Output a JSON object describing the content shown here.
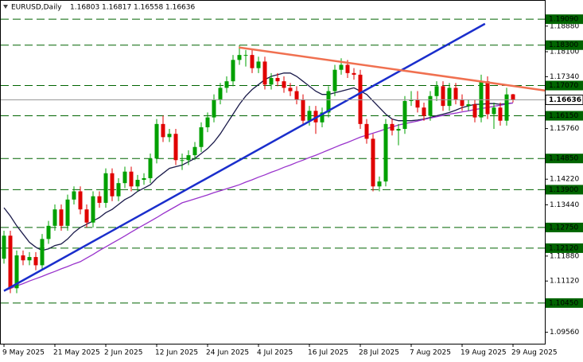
{
  "chart_data": {
    "type": "candlestick",
    "symbol": "EURUSD,Daily",
    "categories": [
      "9 May 2025",
      null,
      null,
      null,
      null,
      null,
      null,
      null,
      "21 May 2025",
      null,
      null,
      null,
      null,
      null,
      null,
      null,
      "2 Jun 2025",
      null,
      null,
      null,
      null,
      null,
      null,
      null,
      "12 Jun 2025",
      null,
      null,
      null,
      null,
      null,
      null,
      null,
      "24 Jun 2025",
      null,
      null,
      null,
      null,
      null,
      null,
      null,
      "4 Jul 2025",
      null,
      null,
      null,
      null,
      null,
      null,
      null,
      "16 Jul 2025",
      null,
      null,
      null,
      null,
      null,
      null,
      null,
      "28 Jul 2025",
      null,
      null,
      null,
      null,
      null,
      null,
      null,
      "7 Aug 2025",
      null,
      null,
      null,
      null,
      null,
      null,
      null,
      "19 Aug 2025",
      null,
      null,
      null,
      null,
      null,
      null,
      null,
      "29 Aug 2025"
    ],
    "ohlc": [
      [
        1.118,
        1.1265,
        1.1165,
        1.125
      ],
      [
        1.125,
        1.1265,
        1.1075,
        1.109
      ],
      [
        1.109,
        1.1205,
        1.1075,
        1.119
      ],
      [
        1.119,
        1.1205,
        1.116,
        1.1175
      ],
      [
        1.1175,
        1.12,
        1.116,
        1.1185
      ],
      [
        1.1185,
        1.12,
        1.1145,
        1.116
      ],
      [
        1.116,
        1.1255,
        1.1145,
        1.124
      ],
      [
        1.124,
        1.1295,
        1.1225,
        1.128
      ],
      [
        1.128,
        1.1345,
        1.1265,
        1.133
      ],
      [
        1.133,
        1.1345,
        1.1265,
        1.128
      ],
      [
        1.128,
        1.1375,
        1.1265,
        1.136
      ],
      [
        1.136,
        1.14,
        1.1345,
        1.1385
      ],
      [
        1.1385,
        1.14,
        1.1315,
        1.133
      ],
      [
        1.133,
        1.1345,
        1.1275,
        1.129
      ],
      [
        1.129,
        1.1385,
        1.1275,
        1.137
      ],
      [
        1.137,
        1.1385,
        1.1335,
        1.135
      ],
      [
        1.135,
        1.1455,
        1.1335,
        1.144
      ],
      [
        1.144,
        1.1455,
        1.1355,
        1.137
      ],
      [
        1.137,
        1.1425,
        1.1355,
        1.141
      ],
      [
        1.141,
        1.146,
        1.1395,
        1.1445
      ],
      [
        1.1445,
        1.146,
        1.1385,
        1.14
      ],
      [
        1.14,
        1.1435,
        1.1385,
        1.142
      ],
      [
        1.142,
        1.144,
        1.1405,
        1.1425
      ],
      [
        1.1425,
        1.15,
        1.141,
        1.1485
      ],
      [
        1.1485,
        1.1605,
        1.147,
        1.159
      ],
      [
        1.159,
        1.1615,
        1.1535,
        1.155
      ],
      [
        1.155,
        1.1575,
        1.1535,
        1.156
      ],
      [
        1.156,
        1.1575,
        1.1465,
        1.148
      ],
      [
        1.148,
        1.15,
        1.145,
        1.148
      ],
      [
        1.148,
        1.151,
        1.1465,
        1.1495
      ],
      [
        1.1495,
        1.1535,
        1.148,
        1.152
      ],
      [
        1.152,
        1.1595,
        1.1505,
        1.158
      ],
      [
        1.158,
        1.1625,
        1.1565,
        1.161
      ],
      [
        1.161,
        1.168,
        1.1595,
        1.1665
      ],
      [
        1.1665,
        1.1715,
        1.165,
        1.17
      ],
      [
        1.17,
        1.1735,
        1.1685,
        1.172
      ],
      [
        1.172,
        1.18,
        1.1705,
        1.1785
      ],
      [
        1.1785,
        1.183,
        1.177,
        1.18
      ],
      [
        1.18,
        1.1815,
        1.1765,
        1.18
      ],
      [
        1.18,
        1.1815,
        1.1745,
        1.176
      ],
      [
        1.176,
        1.1795,
        1.1745,
        1.178
      ],
      [
        1.178,
        1.1795,
        1.1695,
        1.171
      ],
      [
        1.171,
        1.1745,
        1.1695,
        1.173
      ],
      [
        1.173,
        1.1745,
        1.1705,
        1.172
      ],
      [
        1.172,
        1.1735,
        1.1685,
        1.17
      ],
      [
        1.17,
        1.1715,
        1.1675,
        1.169
      ],
      [
        1.169,
        1.1705,
        1.165,
        1.1665
      ],
      [
        1.1665,
        1.168,
        1.1585,
        1.16
      ],
      [
        1.16,
        1.1645,
        1.1585,
        1.163
      ],
      [
        1.163,
        1.1645,
        1.156,
        1.1595
      ],
      [
        1.1595,
        1.164,
        1.158,
        1.1625
      ],
      [
        1.1625,
        1.1705,
        1.161,
        1.169
      ],
      [
        1.169,
        1.177,
        1.1675,
        1.1755
      ],
      [
        1.1755,
        1.179,
        1.174,
        1.177
      ],
      [
        1.177,
        1.1785,
        1.173,
        1.1745
      ],
      [
        1.1745,
        1.176,
        1.1725,
        1.174
      ],
      [
        1.174,
        1.1755,
        1.1575,
        1.159
      ],
      [
        1.159,
        1.1605,
        1.153,
        1.1545
      ],
      [
        1.1545,
        1.156,
        1.1385,
        1.14
      ],
      [
        1.14,
        1.143,
        1.1385,
        1.1415
      ],
      [
        1.1415,
        1.1605,
        1.14,
        1.159
      ],
      [
        1.159,
        1.1605,
        1.1555,
        1.157
      ],
      [
        1.157,
        1.159,
        1.1525,
        1.1575
      ],
      [
        1.1575,
        1.1675,
        1.156,
        1.166
      ],
      [
        1.166,
        1.169,
        1.1645,
        1.1665
      ],
      [
        1.1665,
        1.169,
        1.1625,
        1.164
      ],
      [
        1.164,
        1.1655,
        1.16,
        1.1615
      ],
      [
        1.1615,
        1.169,
        1.16,
        1.1675
      ],
      [
        1.1675,
        1.172,
        1.166,
        1.1705
      ],
      [
        1.1705,
        1.172,
        1.163,
        1.1645
      ],
      [
        1.1645,
        1.1715,
        1.163,
        1.17
      ],
      [
        1.17,
        1.1715,
        1.165,
        1.1665
      ],
      [
        1.1665,
        1.168,
        1.163,
        1.1645
      ],
      [
        1.1645,
        1.1665,
        1.163,
        1.165
      ],
      [
        1.165,
        1.1665,
        1.1595,
        1.161
      ],
      [
        1.161,
        1.174,
        1.1595,
        1.172
      ],
      [
        1.172,
        1.1735,
        1.1605,
        1.162
      ],
      [
        1.162,
        1.1655,
        1.1575,
        1.164
      ],
      [
        1.164,
        1.1655,
        1.1585,
        1.16
      ],
      [
        1.16,
        1.17,
        1.1585,
        1.168
      ],
      [
        1.16803,
        1.16817,
        1.16558,
        1.16636
      ]
    ],
    "up_color": "#00a000",
    "down_color": "#e00000",
    "moving_averages": [
      {
        "color": "#1a1a4a",
        "values": [
          1.1335,
          1.131,
          1.128,
          1.1255,
          1.123,
          1.1215,
          1.1205,
          1.121,
          1.122,
          1.1225,
          1.124,
          1.126,
          1.1275,
          1.1285,
          1.1295,
          1.1305,
          1.132,
          1.133,
          1.1345,
          1.136,
          1.137,
          1.1385,
          1.1395,
          1.1405,
          1.1425,
          1.144,
          1.1455,
          1.146,
          1.1465,
          1.1475,
          1.1485,
          1.15,
          1.1515,
          1.1535,
          1.156,
          1.159,
          1.162,
          1.165,
          1.1675,
          1.1695,
          1.171,
          1.1725,
          1.1735,
          1.174,
          1.1745,
          1.1745,
          1.1735,
          1.172,
          1.1705,
          1.169,
          1.168,
          1.168,
          1.1685,
          1.169,
          1.1695,
          1.17,
          1.169,
          1.168,
          1.166,
          1.164,
          1.162,
          1.1605,
          1.16,
          1.16,
          1.16,
          1.1602,
          1.1605,
          1.161,
          1.1615,
          1.162,
          1.1625,
          1.1632,
          1.164,
          1.1645,
          1.165,
          1.165,
          1.1652,
          1.1652,
          1.165,
          1.1652,
          1.1654
        ]
      },
      {
        "color": "#9933cc",
        "values": [
          1.1082,
          1.1089,
          1.1097,
          1.1104,
          1.1112,
          1.1119,
          1.1126,
          1.1134,
          1.1141,
          1.1149,
          1.1156,
          1.1164,
          1.1171,
          1.1182,
          1.1193,
          1.1205,
          1.1216,
          1.1227,
          1.1238,
          1.1249,
          1.1261,
          1.1272,
          1.1283,
          1.1294,
          1.1305,
          1.1317,
          1.1328,
          1.1339,
          1.135,
          1.1356,
          1.1362,
          1.1368,
          1.1374,
          1.1381,
          1.1387,
          1.1393,
          1.1399,
          1.1405,
          1.1413,
          1.142,
          1.1428,
          1.1435,
          1.1443,
          1.145,
          1.1458,
          1.1465,
          1.1473,
          1.148,
          1.1488,
          1.1495,
          1.1503,
          1.1511,
          1.1519,
          1.1527,
          1.1534,
          1.1542,
          1.155,
          1.1556,
          1.1562,
          1.1568,
          1.1575,
          1.1581,
          1.1587,
          1.1591,
          1.1595,
          1.1599,
          1.1604,
          1.1608,
          1.1612,
          1.1616,
          1.162,
          1.1623,
          1.1627,
          1.163,
          1.1634,
          1.1637,
          1.164,
          1.1644,
          1.1647,
          1.1651,
          1.1654
        ]
      }
    ],
    "trendlines": [
      {
        "color": "#1a2ecc",
        "x": [
          0,
          75.6
        ],
        "values": [
          1.1082,
          1.1895
        ]
      },
      {
        "color": "#f07050",
        "x": [
          36.9,
          85
        ],
        "values": [
          1.1823,
          1.1692
        ]
      }
    ],
    "levels": [
      {
        "value": 1.1909,
        "label": "1.19090"
      },
      {
        "value": 1.183,
        "label": "1.18300"
      },
      {
        "value": 1.1707,
        "label": "1.17070"
      },
      {
        "value": 1.1615,
        "label": "1.16150"
      },
      {
        "value": 1.1485,
        "label": "1.14850"
      },
      {
        "value": 1.139,
        "label": "1.13900"
      },
      {
        "value": 1.1275,
        "label": "1.12750"
      },
      {
        "value": 1.1212,
        "label": "1.12120"
      },
      {
        "value": 1.1045,
        "label": "1.10450"
      }
    ],
    "level_color": "#006400",
    "ylim": [
      1.09212,
      1.1965
    ],
    "yticks": [
      {
        "value": 1.1888,
        "label": "1.18880"
      },
      {
        "value": 1.181,
        "label": "1.18100"
      },
      {
        "value": 1.1734,
        "label": "1.17340"
      },
      {
        "value": 1.1576,
        "label": "1.15760"
      },
      {
        "value": 1.1422,
        "label": "1.14220"
      },
      {
        "value": 1.1344,
        "label": "1.13440"
      },
      {
        "value": 1.1188,
        "label": "1.11880"
      },
      {
        "value": 1.1112,
        "label": "1.11120"
      },
      {
        "value": 1.0956,
        "label": "1.09560"
      }
    ]
  }
}
